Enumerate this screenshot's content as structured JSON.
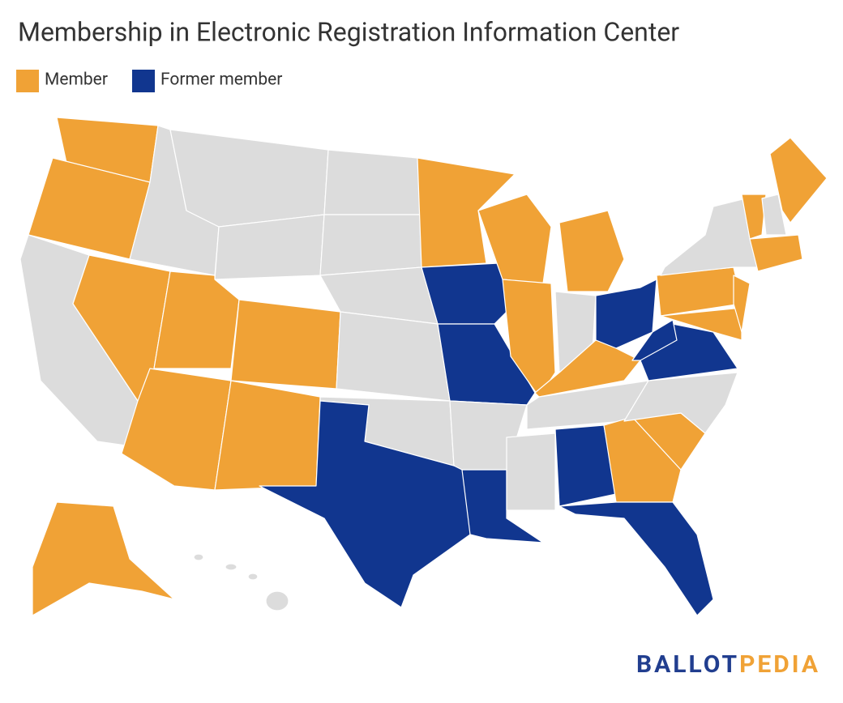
{
  "header": {
    "title": "Membership in Electronic Registration Information Center"
  },
  "legend": {
    "items": [
      {
        "label": "Member",
        "color": "#f0a236"
      },
      {
        "label": "Former member",
        "color": "#11368f"
      }
    ]
  },
  "map": {
    "other_color": "#dcdcdc"
  },
  "footer": {
    "brand": [
      {
        "text": "BALLOT",
        "color": "#213e8f"
      },
      {
        "text": "PEDIA",
        "color": "#f0a236"
      }
    ]
  }
}
